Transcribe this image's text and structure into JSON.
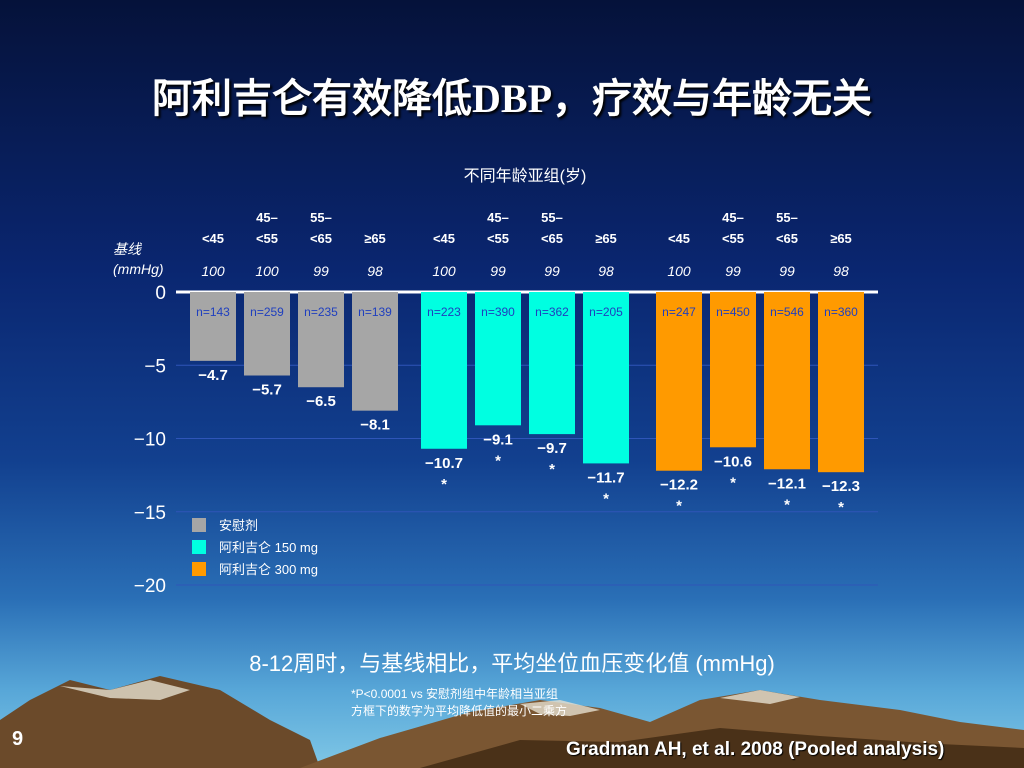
{
  "slide": {
    "title": "阿利吉仑有效降低DBP，疗效与年龄无关",
    "caption": "8-12周时，与基线相比，平均坐位血压变化值 (mmHg)",
    "footnote_line1": "*P<0.0001 vs 安慰剂组中年龄相当亚组",
    "footnote_line2": "方框下的数字为平均降低值的最小二乘方",
    "page_number": "9",
    "citation": "Gradman AH, et al. 2008 (Pooled analysis)"
  },
  "chart_data": {
    "type": "bar",
    "title": "不同年龄亚组(岁)",
    "baseline_label": "基线",
    "baseline_unit": "(mmHg)",
    "ylim": [
      -20,
      0
    ],
    "yticks": [
      0,
      -5,
      -10,
      -15,
      -20
    ],
    "ytick_labels": [
      "0",
      "−5",
      "−10",
      "−15",
      "−20"
    ],
    "age_groups": [
      "<45",
      "45–<55",
      "55–<65",
      "≥65"
    ],
    "series": [
      {
        "name": "安慰剂",
        "color": "#a6a6a6",
        "values": [
          -4.7,
          -5.7,
          -6.5,
          -8.1
        ],
        "value_labels": [
          "−4.7",
          "−5.7",
          "−6.5",
          "−8.1"
        ],
        "n": [
          "n=143",
          "n=259",
          "n=235",
          "n=139"
        ],
        "baseline": [
          "100",
          "100",
          "99",
          "98"
        ],
        "significant": [
          false,
          false,
          false,
          false
        ]
      },
      {
        "name": "阿利吉仑 150 mg",
        "color": "#00ffe1",
        "values": [
          -10.7,
          -9.1,
          -9.7,
          -11.7
        ],
        "value_labels": [
          "−10.7",
          "−9.1",
          "−9.7",
          "−11.7"
        ],
        "n": [
          "n=223",
          "n=390",
          "n=362",
          "n=205"
        ],
        "baseline": [
          "100",
          "99",
          "99",
          "98"
        ],
        "significant": [
          true,
          true,
          true,
          true
        ]
      },
      {
        "name": "阿利吉仑 300 mg",
        "color": "#ff9a00",
        "values": [
          -12.2,
          -10.6,
          -12.1,
          -12.3
        ],
        "value_labels": [
          "−12.2",
          "−10.6",
          "−12.1",
          "−12.3"
        ],
        "n": [
          "n=247",
          "n=450",
          "n=546",
          "n=360"
        ],
        "baseline": [
          "100",
          "99",
          "99",
          "98"
        ],
        "significant": [
          true,
          true,
          true,
          true
        ]
      }
    ],
    "significance_mark": "*",
    "legend_position": "bottom-left",
    "grid": true
  }
}
